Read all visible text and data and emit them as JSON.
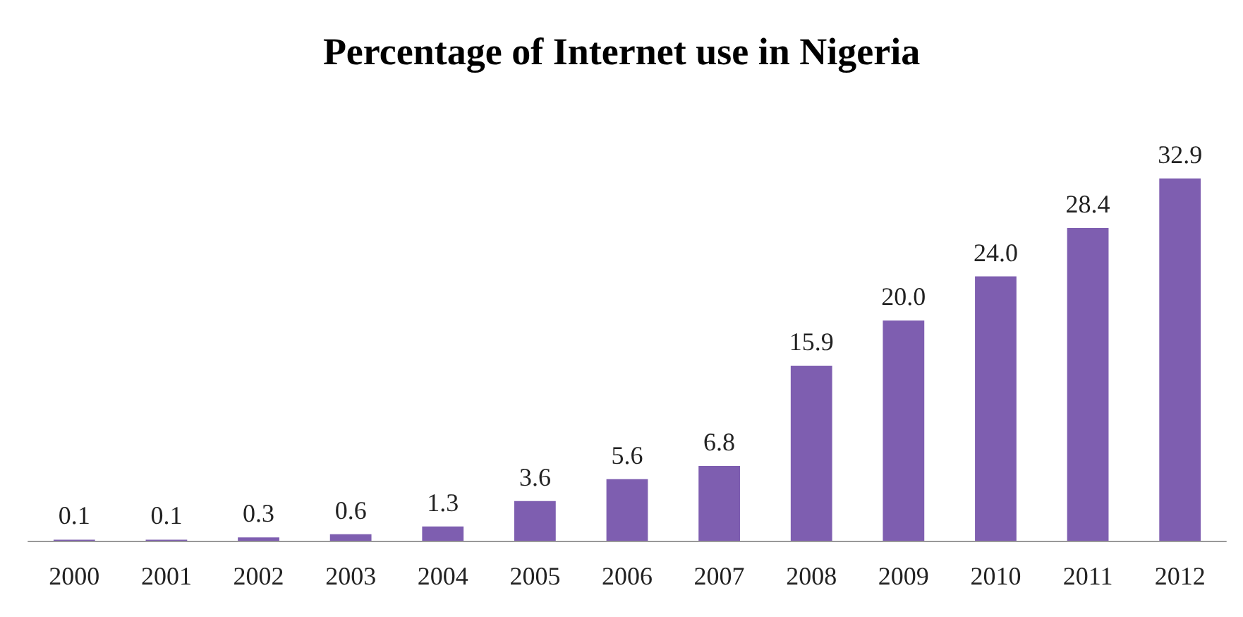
{
  "chart_data": {
    "type": "bar",
    "title": "Percentage of Internet use in Nigeria",
    "categories": [
      "2000",
      "2001",
      "2002",
      "2003",
      "2004",
      "2005",
      "2006",
      "2007",
      "2008",
      "2009",
      "2010",
      "2011",
      "2012"
    ],
    "values": [
      0.1,
      0.1,
      0.3,
      0.6,
      1.3,
      3.6,
      5.6,
      6.8,
      15.9,
      20.0,
      24.0,
      28.4,
      32.9
    ],
    "value_labels": [
      "0.1",
      "0.1",
      "0.3",
      "0.6",
      "1.3",
      "3.6",
      "5.6",
      "6.8",
      "15.9",
      "20.0",
      "24.0",
      "28.4",
      "32.9"
    ],
    "color": "#7e5eb0"
  }
}
